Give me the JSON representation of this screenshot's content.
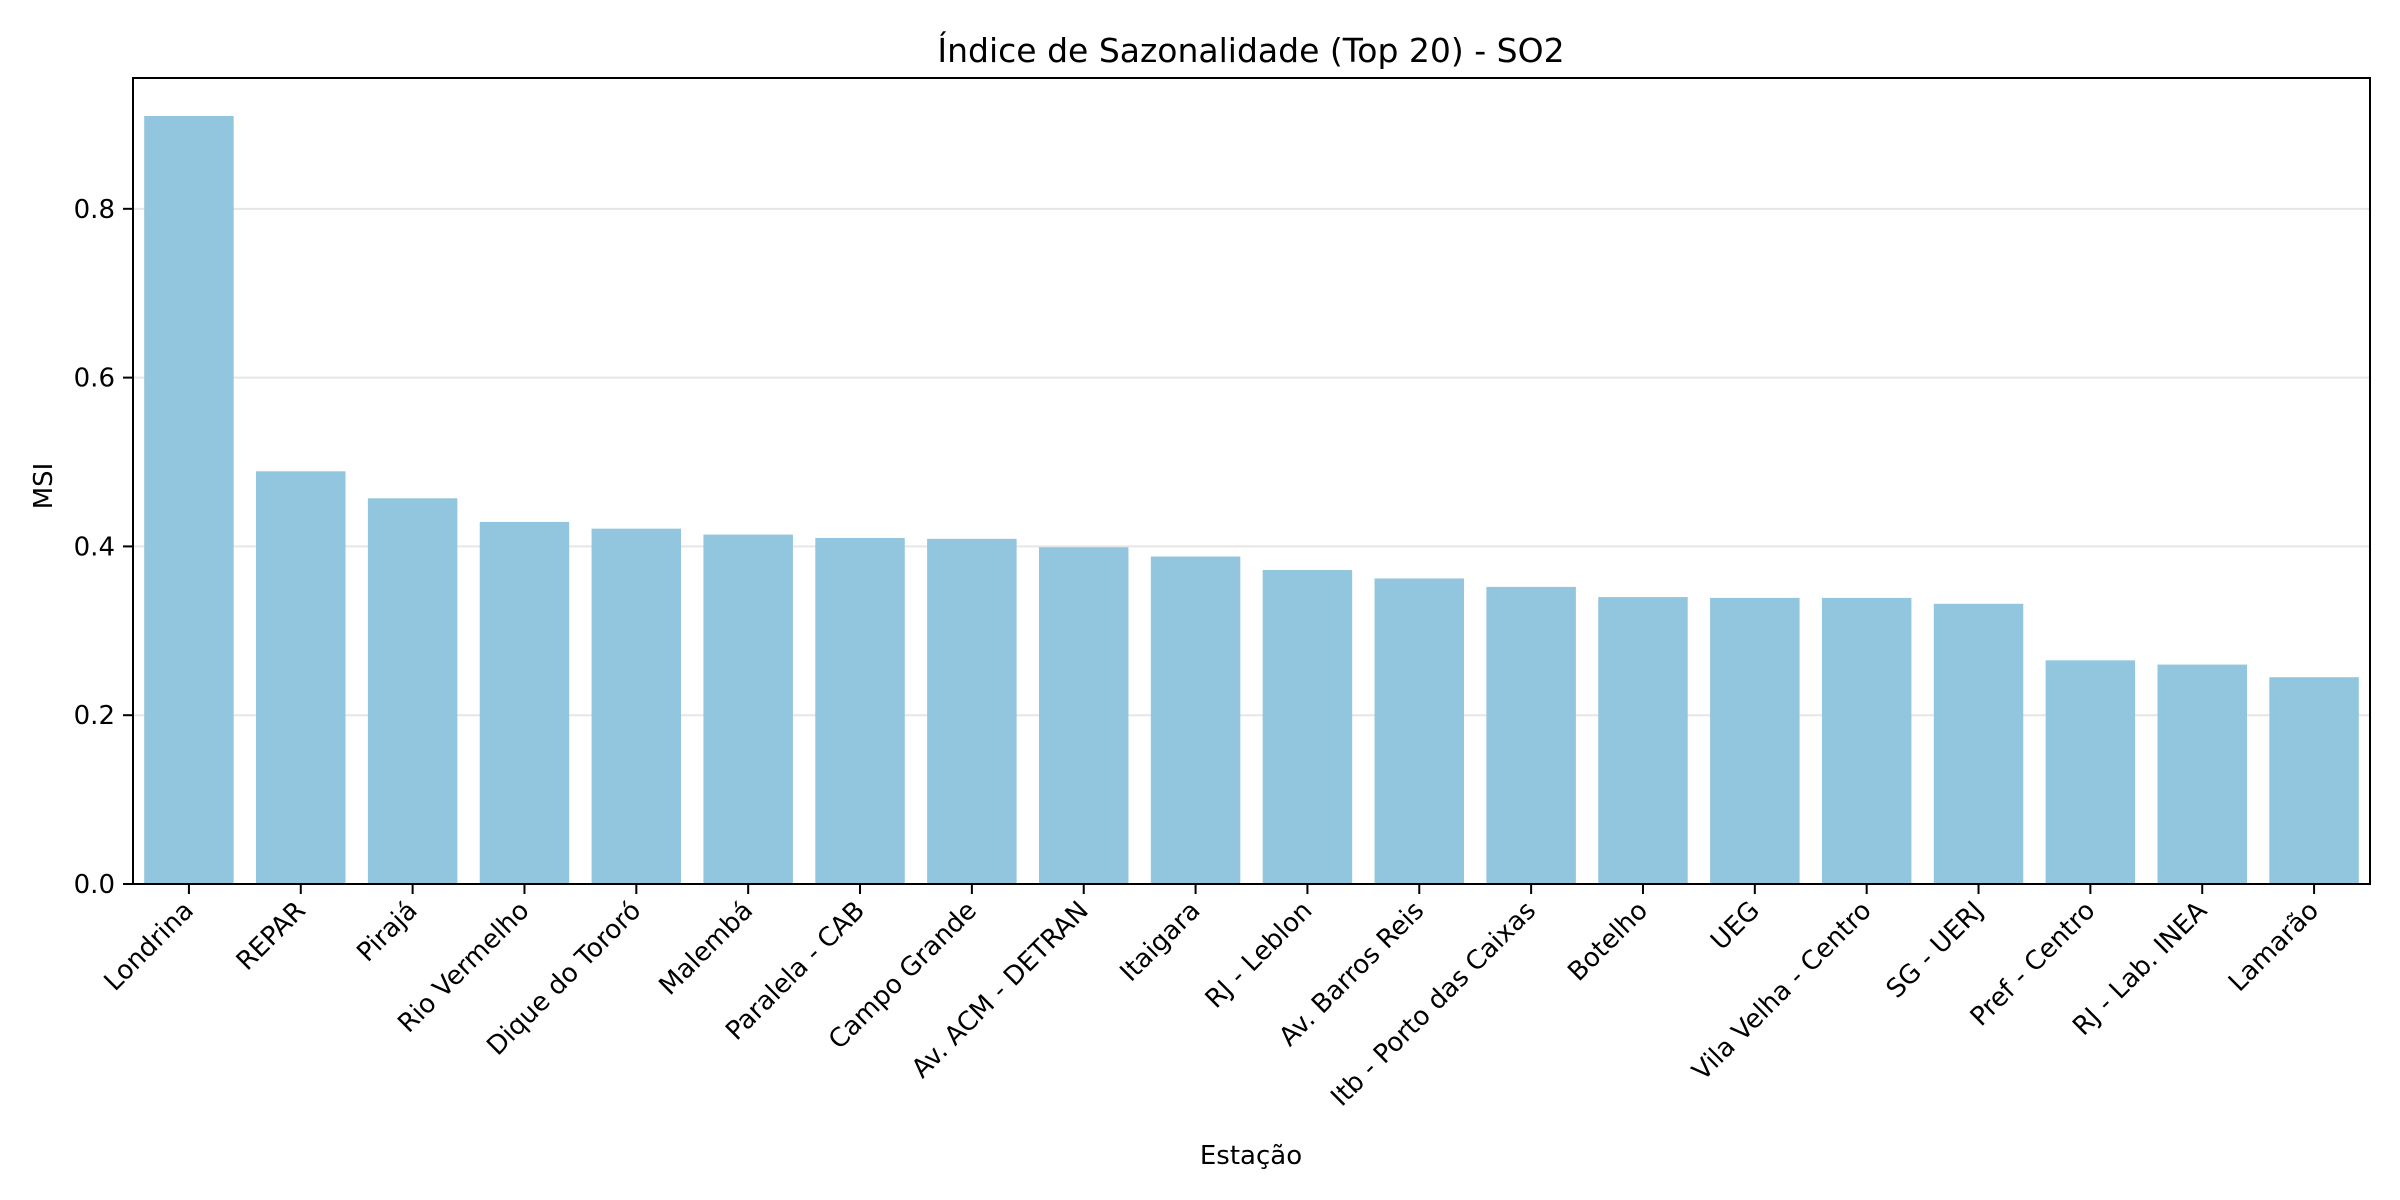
{
  "chart_data": {
    "type": "bar",
    "title": "Índice de Sazonalidade (Top 20) - SO2",
    "xlabel": "Estação",
    "ylabel": "MSI",
    "categories": [
      "Londrina",
      "REPAR",
      "Pirajá",
      "Rio Vermelho",
      "Dique do Tororó",
      "Malembá",
      "Paralela - CAB",
      "Campo Grande",
      "Av. ACM - DETRAN",
      "Itaigara",
      "RJ - Leblon",
      "Av. Barros Reis",
      "Itb - Porto das Caixas",
      "Botelho",
      "UEG",
      "Vila Velha - Centro",
      "SG - UERJ",
      "Pref - Centro",
      "RJ - Lab. INEA",
      "Lamarão"
    ],
    "values": [
      0.91,
      0.489,
      0.457,
      0.429,
      0.421,
      0.414,
      0.41,
      0.409,
      0.399,
      0.388,
      0.372,
      0.362,
      0.352,
      0.34,
      0.339,
      0.339,
      0.332,
      0.265,
      0.26,
      0.245
    ],
    "ylim": [
      0,
      0.955
    ],
    "yticks": [
      0.0,
      0.2,
      0.4,
      0.6,
      0.8
    ],
    "ytick_labels": [
      "0.0",
      "0.2",
      "0.4",
      "0.6",
      "0.8"
    ],
    "grid": "horizontal",
    "bar_color": "#92C5DE",
    "grid_color": "#e6e6e6"
  }
}
